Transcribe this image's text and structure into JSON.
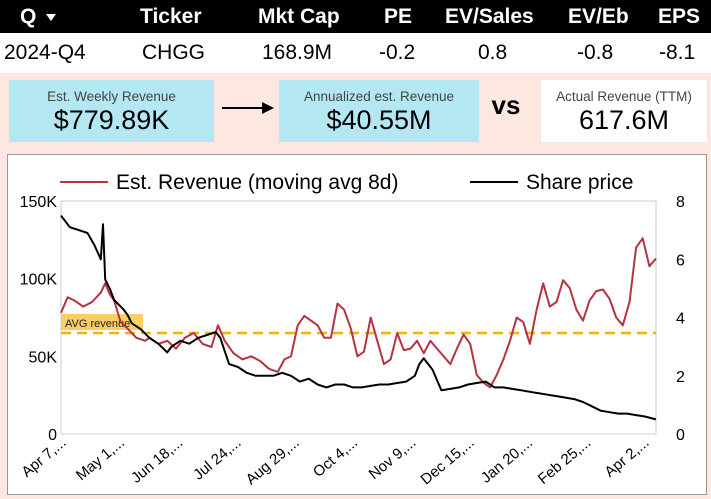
{
  "table": {
    "headers": [
      {
        "key": "q",
        "label": "Q"
      },
      {
        "key": "ticker",
        "label": "Ticker"
      },
      {
        "key": "mktcap",
        "label": "Mkt Cap"
      },
      {
        "key": "pe",
        "label": "PE"
      },
      {
        "key": "evsales",
        "label": "EV/Sales"
      },
      {
        "key": "eveb",
        "label": "EV/Eb"
      },
      {
        "key": "eps",
        "label": "EPS"
      }
    ],
    "row": {
      "q": "2024-Q4",
      "ticker": "CHGG",
      "mktcap": "168.9M",
      "pe": "-0.2",
      "evsales": "0.8",
      "eveb": "-0.8",
      "eps": "-8.1"
    }
  },
  "kpis": {
    "weekly_label": "Est. Weekly Revenue",
    "weekly_value": "$779.89K",
    "annual_label": "Annualized est. Revenue",
    "annual_value": "$40.55M",
    "vs": "vs",
    "actual_label": "Actual Revenue (TTM)",
    "actual_value": "617.6M"
  },
  "colors": {
    "revenue_line": "#b5323f",
    "price_line": "#000000",
    "avg_line": "#f2b400",
    "kpi_box": "#b3e8f2",
    "background": "#fce8e1"
  },
  "chart_data": {
    "type": "line",
    "legend": {
      "position": "top",
      "entries": [
        "Est. Revenue (moving avg 8d)",
        "Share price"
      ]
    },
    "x_tick_labels": [
      "Apr 7,...",
      "May 1,...",
      "Jun 18,...",
      "Jul 24,...",
      "Aug 29,...",
      "Oct 4,...",
      "Nov 9,...",
      "Dec 15,...",
      "Jan 20,...",
      "Feb 25,...",
      "Apr 2,..."
    ],
    "y_left": {
      "ticks": [
        "0",
        "50K",
        "100K",
        "150K"
      ],
      "range": [
        0,
        150000
      ]
    },
    "y_right": {
      "ticks": [
        "0",
        "2",
        "4",
        "6",
        "8"
      ],
      "range": [
        0,
        8
      ]
    },
    "avg_line": {
      "label": "AVG revenue",
      "value": 65000
    },
    "series": [
      {
        "name": "Est. Revenue (moving avg 8d)",
        "axis": "left",
        "points": [
          [
            0,
            78000
          ],
          [
            0.015,
            88000
          ],
          [
            0.03,
            86000
          ],
          [
            0.05,
            82000
          ],
          [
            0.07,
            85000
          ],
          [
            0.09,
            91000
          ],
          [
            0.1,
            97000
          ],
          [
            0.11,
            90000
          ],
          [
            0.12,
            86000
          ],
          [
            0.135,
            72000
          ],
          [
            0.15,
            68000
          ],
          [
            0.17,
            62000
          ],
          [
            0.19,
            60000
          ],
          [
            0.2,
            62000
          ],
          [
            0.22,
            58000
          ],
          [
            0.24,
            60000
          ],
          [
            0.26,
            55000
          ],
          [
            0.28,
            62000
          ],
          [
            0.3,
            65000
          ],
          [
            0.32,
            58000
          ],
          [
            0.34,
            56000
          ],
          [
            0.355,
            70000
          ],
          [
            0.37,
            60000
          ],
          [
            0.39,
            52000
          ],
          [
            0.41,
            48000
          ],
          [
            0.43,
            50000
          ],
          [
            0.45,
            47000
          ],
          [
            0.47,
            42000
          ],
          [
            0.49,
            40000
          ],
          [
            0.505,
            48000
          ],
          [
            0.52,
            50000
          ],
          [
            0.535,
            70000
          ],
          [
            0.55,
            76000
          ],
          [
            0.565,
            73000
          ],
          [
            0.58,
            70000
          ],
          [
            0.595,
            62000
          ],
          [
            0.61,
            62000
          ],
          [
            0.625,
            84000
          ],
          [
            0.64,
            80000
          ],
          [
            0.655,
            68000
          ],
          [
            0.67,
            50000
          ],
          [
            0.685,
            53000
          ],
          [
            0.7,
            75000
          ],
          [
            0.715,
            60000
          ],
          [
            0.73,
            45000
          ],
          [
            0.745,
            48000
          ],
          [
            0.76,
            65000
          ],
          [
            0.775,
            54000
          ],
          [
            0.79,
            55000
          ],
          [
            0.805,
            60000
          ],
          [
            0.82,
            52000
          ],
          [
            0.835,
            60000
          ],
          [
            0.85,
            55000
          ],
          [
            0.865,
            50000
          ],
          [
            0.88,
            45000
          ],
          [
            0.895,
            55000
          ],
          [
            0.91,
            64000
          ],
          [
            0.925,
            58000
          ],
          [
            0.94,
            38000
          ],
          [
            0.955,
            33000
          ],
          [
            0.97,
            30000
          ],
          [
            0.985,
            38000
          ],
          [
            1,
            48000
          ],
          [
            1.015,
            60000
          ],
          [
            1.03,
            75000
          ],
          [
            1.045,
            72000
          ],
          [
            1.06,
            58000
          ],
          [
            1.075,
            80000
          ],
          [
            1.09,
            97000
          ],
          [
            1.105,
            82000
          ],
          [
            1.12,
            85000
          ],
          [
            1.135,
            99000
          ],
          [
            1.15,
            94000
          ],
          [
            1.165,
            80000
          ],
          [
            1.18,
            73000
          ],
          [
            1.195,
            86000
          ],
          [
            1.21,
            92000
          ],
          [
            1.225,
            93000
          ],
          [
            1.24,
            87000
          ],
          [
            1.255,
            75000
          ],
          [
            1.27,
            70000
          ],
          [
            1.285,
            85000
          ],
          [
            1.3,
            120000
          ],
          [
            1.315,
            126000
          ],
          [
            1.33,
            108000
          ],
          [
            1.345,
            113000
          ]
        ]
      },
      {
        "name": "Share price",
        "axis": "right",
        "points": [
          [
            0,
            7.5
          ],
          [
            0.02,
            7.1
          ],
          [
            0.04,
            7.0
          ],
          [
            0.06,
            6.9
          ],
          [
            0.075,
            6.5
          ],
          [
            0.09,
            6.0
          ],
          [
            0.095,
            7.2
          ],
          [
            0.1,
            5.3
          ],
          [
            0.11,
            5.0
          ],
          [
            0.12,
            4.6
          ],
          [
            0.14,
            4.3
          ],
          [
            0.15,
            4.1
          ],
          [
            0.16,
            3.8
          ],
          [
            0.18,
            3.6
          ],
          [
            0.2,
            3.3
          ],
          [
            0.22,
            3.1
          ],
          [
            0.24,
            2.8
          ],
          [
            0.25,
            3.0
          ],
          [
            0.27,
            3.2
          ],
          [
            0.29,
            3.1
          ],
          [
            0.31,
            3.3
          ],
          [
            0.33,
            3.4
          ],
          [
            0.35,
            3.5
          ],
          [
            0.36,
            3.3
          ],
          [
            0.38,
            2.4
          ],
          [
            0.4,
            2.3
          ],
          [
            0.42,
            2.1
          ],
          [
            0.44,
            2.0
          ],
          [
            0.46,
            2.0
          ],
          [
            0.48,
            2.0
          ],
          [
            0.5,
            2.1
          ],
          [
            0.52,
            2.0
          ],
          [
            0.54,
            1.8
          ],
          [
            0.56,
            1.9
          ],
          [
            0.58,
            1.7
          ],
          [
            0.6,
            1.6
          ],
          [
            0.62,
            1.7
          ],
          [
            0.64,
            1.7
          ],
          [
            0.66,
            1.6
          ],
          [
            0.68,
            1.6
          ],
          [
            0.7,
            1.65
          ],
          [
            0.72,
            1.7
          ],
          [
            0.74,
            1.7
          ],
          [
            0.76,
            1.75
          ],
          [
            0.78,
            1.8
          ],
          [
            0.8,
            2.0
          ],
          [
            0.81,
            2.4
          ],
          [
            0.82,
            2.6
          ],
          [
            0.83,
            2.4
          ],
          [
            0.84,
            2.2
          ],
          [
            0.86,
            1.5
          ],
          [
            0.88,
            1.55
          ],
          [
            0.9,
            1.6
          ],
          [
            0.92,
            1.7
          ],
          [
            0.94,
            1.75
          ],
          [
            0.96,
            1.8
          ],
          [
            0.98,
            1.6
          ],
          [
            1,
            1.6
          ],
          [
            1.02,
            1.55
          ],
          [
            1.04,
            1.5
          ],
          [
            1.06,
            1.45
          ],
          [
            1.08,
            1.4
          ],
          [
            1.1,
            1.35
          ],
          [
            1.12,
            1.3
          ],
          [
            1.14,
            1.25
          ],
          [
            1.16,
            1.2
          ],
          [
            1.18,
            1.1
          ],
          [
            1.2,
            0.95
          ],
          [
            1.22,
            0.8
          ],
          [
            1.24,
            0.75
          ],
          [
            1.26,
            0.7
          ],
          [
            1.28,
            0.7
          ],
          [
            1.3,
            0.65
          ],
          [
            1.32,
            0.6
          ],
          [
            1.345,
            0.5
          ]
        ]
      }
    ]
  }
}
